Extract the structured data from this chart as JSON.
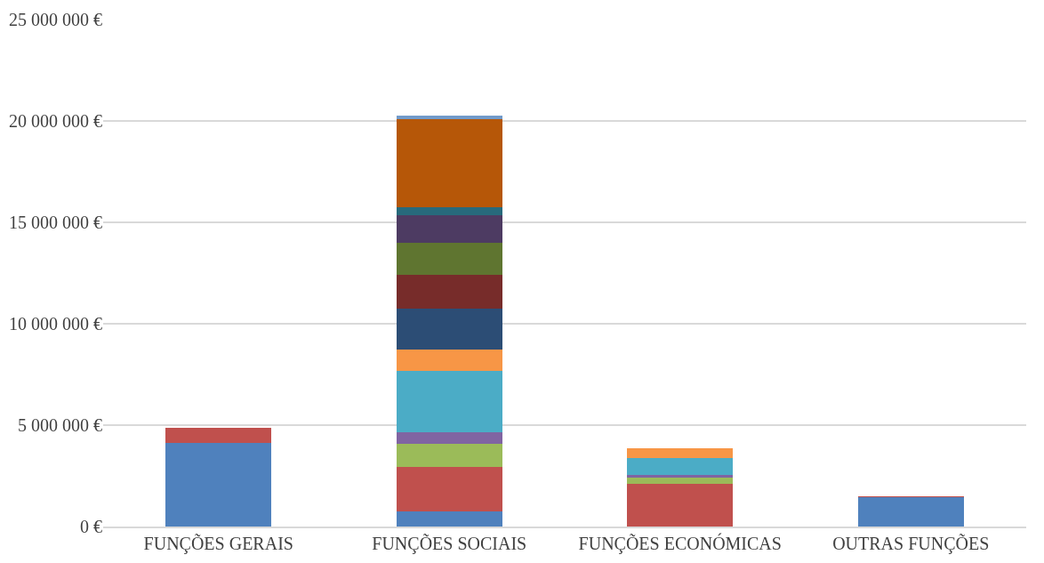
{
  "chart_data": {
    "type": "bar",
    "stacked": true,
    "grid": "y",
    "categories": [
      "FUNÇÕES GERAIS",
      "FUNÇÕES SOCIAIS",
      "FUNÇÕES ECONÓMICAS",
      "OUTRAS FUNÇÕES"
    ],
    "ylim": [
      0,
      25000000
    ],
    "yticks": [
      {
        "value": 0,
        "label": "0 €"
      },
      {
        "value": 5000000,
        "label": "5 000 000 €"
      },
      {
        "value": 10000000,
        "label": "10 000 000 €"
      },
      {
        "value": 15000000,
        "label": "15 000 000 €"
      },
      {
        "value": 20000000,
        "label": "20 000 000 €"
      },
      {
        "value": 25000000,
        "label": "25 000 000 €"
      }
    ],
    "series": [
      {
        "color": "#4f81bd",
        "values": [
          4140000,
          760000,
          null,
          1460000
        ]
      },
      {
        "color": "#c0504d",
        "values": [
          720000,
          2170000,
          2120000,
          10000
        ]
      },
      {
        "color": "#9bbb59",
        "values": [
          null,
          1170000,
          310000,
          null
        ]
      },
      {
        "color": "#8064a2",
        "values": [
          null,
          540000,
          120000,
          null
        ]
      },
      {
        "color": "#4bacc6",
        "values": [
          null,
          3050000,
          820000,
          null
        ]
      },
      {
        "color": "#f79646",
        "values": [
          null,
          1050000,
          490000,
          null
        ]
      },
      {
        "color": "#2c4d75",
        "values": [
          null,
          1990000,
          null,
          null
        ]
      },
      {
        "color": "#772c2a",
        "values": [
          null,
          1690000,
          null,
          null
        ]
      },
      {
        "color": "#5f7530",
        "values": [
          null,
          1580000,
          null,
          null
        ]
      },
      {
        "color": "#4d3b62",
        "values": [
          null,
          1350000,
          null,
          null
        ]
      },
      {
        "color": "#276a7c",
        "values": [
          null,
          400000,
          null,
          null
        ]
      },
      {
        "color": "#b65708",
        "values": [
          null,
          4350000,
          null,
          null
        ]
      },
      {
        "color": "#729aca",
        "values": [
          null,
          180000,
          null,
          null
        ]
      }
    ]
  }
}
